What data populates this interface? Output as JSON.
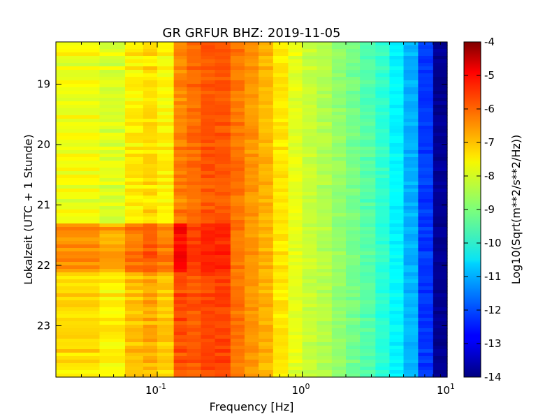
{
  "chart_data": {
    "type": "heatmap",
    "title": "GR GRFUR BHZ: 2019-11-05",
    "xlabel": "Frequency [Hz]",
    "ylabel": "Lokalzeit (UTC + 1 Stunde)",
    "colorbar_label": "Log10(Sqrt(m**2/s**2/Hz))",
    "x_scale": "log",
    "xlim": [
      0.02,
      10
    ],
    "x_ticks": [
      {
        "value": 0.1,
        "base": "10",
        "exp": "-1"
      },
      {
        "value": 1,
        "base": "10",
        "exp": "0"
      },
      {
        "value": 10,
        "base": "10",
        "exp": "1"
      }
    ],
    "y_inverted": true,
    "ylim": [
      18.3,
      23.85
    ],
    "y_ticks": [
      "19",
      "20",
      "21",
      "22",
      "23"
    ],
    "colorbar_range": [
      -14,
      -4
    ],
    "colorbar_ticks": [
      "-4",
      "-5",
      "-6",
      "-7",
      "-8",
      "-9",
      "-10",
      "-11",
      "-12",
      "-13",
      "-14"
    ],
    "colormap": "jet",
    "frequency_bands_hz": [
      0.02,
      0.04,
      0.06,
      0.08,
      0.1,
      0.13,
      0.16,
      0.2,
      0.25,
      0.32,
      0.4,
      0.5,
      0.63,
      0.8,
      1.0,
      1.26,
      1.6,
      2.0,
      2.5,
      3.2,
      4.0,
      5.0,
      6.3,
      8.0,
      10.0
    ],
    "mean_spectrum_log10": [
      -7.9,
      -8.1,
      -7.6,
      -7.4,
      -7.7,
      -6.5,
      -6.3,
      -6.1,
      -6.1,
      -6.4,
      -6.7,
      -7.0,
      -7.5,
      -8.0,
      -8.3,
      -8.5,
      -8.8,
      -9.1,
      -9.4,
      -9.8,
      -10.3,
      -11.0,
      -12.2,
      -13.8
    ],
    "time_periods": [
      {
        "from": 18.3,
        "to": 21.3,
        "low_freq_offset": 0.0
      },
      {
        "from": 21.3,
        "to": 22.1,
        "low_freq_offset": 1.2
      },
      {
        "from": 22.1,
        "to": 23.85,
        "low_freq_offset": 0.5
      }
    ]
  }
}
